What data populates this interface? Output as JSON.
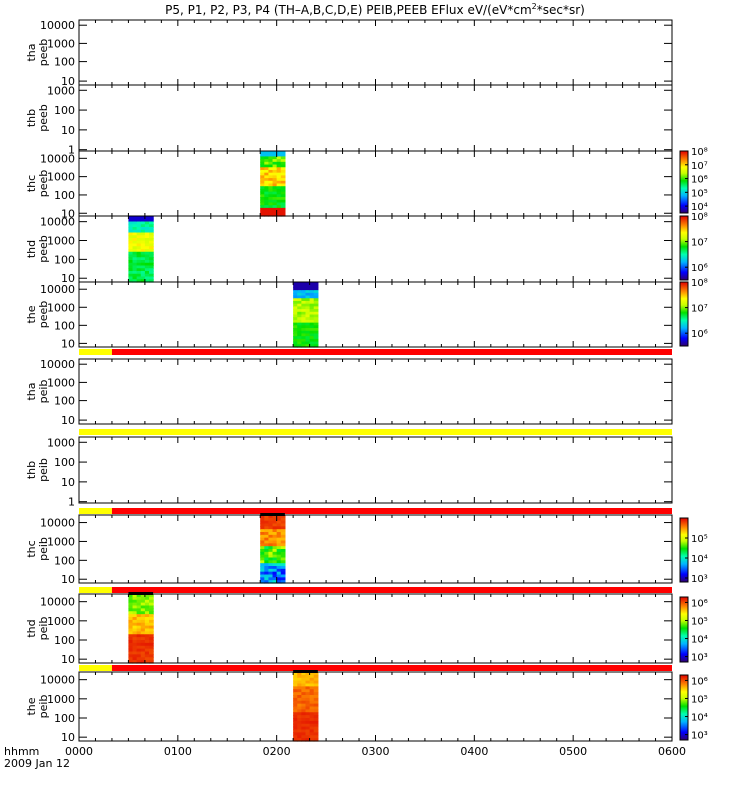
{
  "title": "P5, P1, P2, P3, P4 (TH–A,B,C,D,E) PEIB,PEEB EFlux eV/(eV*cm",
  "title_sup": "2",
  "title_tail": "*sec*sr)",
  "time_axis": {
    "label_line1": "hhmm",
    "label_line2": "2009 Jan 12",
    "ticks": [
      "0000",
      "0100",
      "0200",
      "0300",
      "0400",
      "0500",
      "0600"
    ]
  },
  "colors": {
    "flag_yellow": "#ffff00",
    "flag_red": "#ff0000"
  },
  "chart_data": {
    "type": "heatmap",
    "x_range_hhmm": [
      "00:00",
      "06:00"
    ],
    "panels": [
      {
        "probe": "thc",
        "product": "peeb",
        "y_ticks": [
          "10000",
          "1000",
          "100",
          "10"
        ],
        "y_log_range": [
          0.85,
          4.4
        ],
        "burst_hhmm": [
          "01:50",
          "02:05"
        ],
        "cbar_ticks": [
          "10⁸",
          "10⁷",
          "10⁶",
          "10⁵",
          "10⁴"
        ],
        "cbar_min_exp": 3.5,
        "cbar_max_exp": 8,
        "profile": "c_peeb"
      },
      {
        "probe": "thd",
        "product": "peeb",
        "y_ticks": [
          "10000",
          "1000",
          "100",
          "10"
        ],
        "y_log_range": [
          0.8,
          4.3
        ],
        "burst_hhmm": [
          "00:30",
          "00:45"
        ],
        "cbar_ticks": [
          "10⁸",
          "10⁷",
          "10⁶"
        ],
        "cbar_min_exp": 5.5,
        "cbar_max_exp": 8,
        "profile": "d_peeb"
      },
      {
        "probe": "the",
        "product": "peeb",
        "y_ticks": [
          "10000",
          "1000",
          "100",
          "10"
        ],
        "y_log_range": [
          0.8,
          4.4
        ],
        "burst_hhmm": [
          "02:10",
          "02:25"
        ],
        "cbar_ticks": [
          "10⁸",
          "10⁷",
          "10⁶"
        ],
        "cbar_min_exp": 5.5,
        "cbar_max_exp": 8,
        "profile": "e_peeb"
      },
      {
        "probe": "thc",
        "product": "peib",
        "y_ticks": [
          "10000",
          "1000",
          "100",
          "10"
        ],
        "y_log_range": [
          0.8,
          4.4
        ],
        "burst_hhmm": [
          "01:50",
          "02:05"
        ],
        "cbar_ticks": [
          "10⁵",
          "10⁴",
          "10³"
        ],
        "cbar_min_exp": 2.8,
        "cbar_max_exp": 6,
        "profile": "c_peib"
      },
      {
        "probe": "thd",
        "product": "peib",
        "y_ticks": [
          "10000",
          "1000",
          "100",
          "10"
        ],
        "y_log_range": [
          0.8,
          4.4
        ],
        "burst_hhmm": [
          "00:30",
          "00:45"
        ],
        "cbar_ticks": [
          "10⁶",
          "10⁵",
          "10⁴",
          "10³"
        ],
        "cbar_min_exp": 2.7,
        "cbar_max_exp": 6.3,
        "profile": "d_peib"
      },
      {
        "probe": "the",
        "product": "peib",
        "y_ticks": [
          "10000",
          "1000",
          "100",
          "10"
        ],
        "y_log_range": [
          0.8,
          4.4
        ],
        "burst_hhmm": [
          "02:10",
          "02:25"
        ],
        "cbar_ticks": [
          "10⁶",
          "10⁵",
          "10⁴",
          "10³"
        ],
        "cbar_min_exp": 2.7,
        "cbar_max_exp": 6.3,
        "profile": "e_peib"
      }
    ],
    "empty_panels": [
      {
        "probe": "tha",
        "product": "peeb",
        "y_ticks": [
          "10000",
          "1000",
          "100",
          "10"
        ]
      },
      {
        "probe": "thb",
        "product": "peeb",
        "y_ticks": [
          "1000",
          "100",
          "10",
          "1"
        ]
      },
      {
        "probe": "tha",
        "product": "peib",
        "y_ticks": [
          "10000",
          "1000",
          "100",
          "10"
        ]
      },
      {
        "probe": "thb",
        "product": "peib",
        "y_ticks": [
          "1000",
          "100",
          "10",
          "1"
        ]
      }
    ],
    "flag_bars": [
      {
        "segments": [
          {
            "from": "00:00",
            "to": "00:20",
            "color": "yellow"
          },
          {
            "from": "00:20",
            "to": "06:00",
            "color": "red"
          }
        ]
      },
      {
        "segments": [
          {
            "from": "00:00",
            "to": "06:00",
            "color": "yellow"
          }
        ]
      },
      {
        "segments": [
          {
            "from": "00:00",
            "to": "00:20",
            "color": "yellow"
          },
          {
            "from": "00:20",
            "to": "06:00",
            "color": "red"
          }
        ]
      },
      {
        "segments": [
          {
            "from": "00:00",
            "to": "00:20",
            "color": "yellow"
          },
          {
            "from": "00:20",
            "to": "06:00",
            "color": "red"
          }
        ]
      },
      {
        "segments": [
          {
            "from": "00:00",
            "to": "00:20",
            "color": "yellow"
          },
          {
            "from": "00:20",
            "to": "06:00",
            "color": "red"
          }
        ]
      }
    ]
  }
}
